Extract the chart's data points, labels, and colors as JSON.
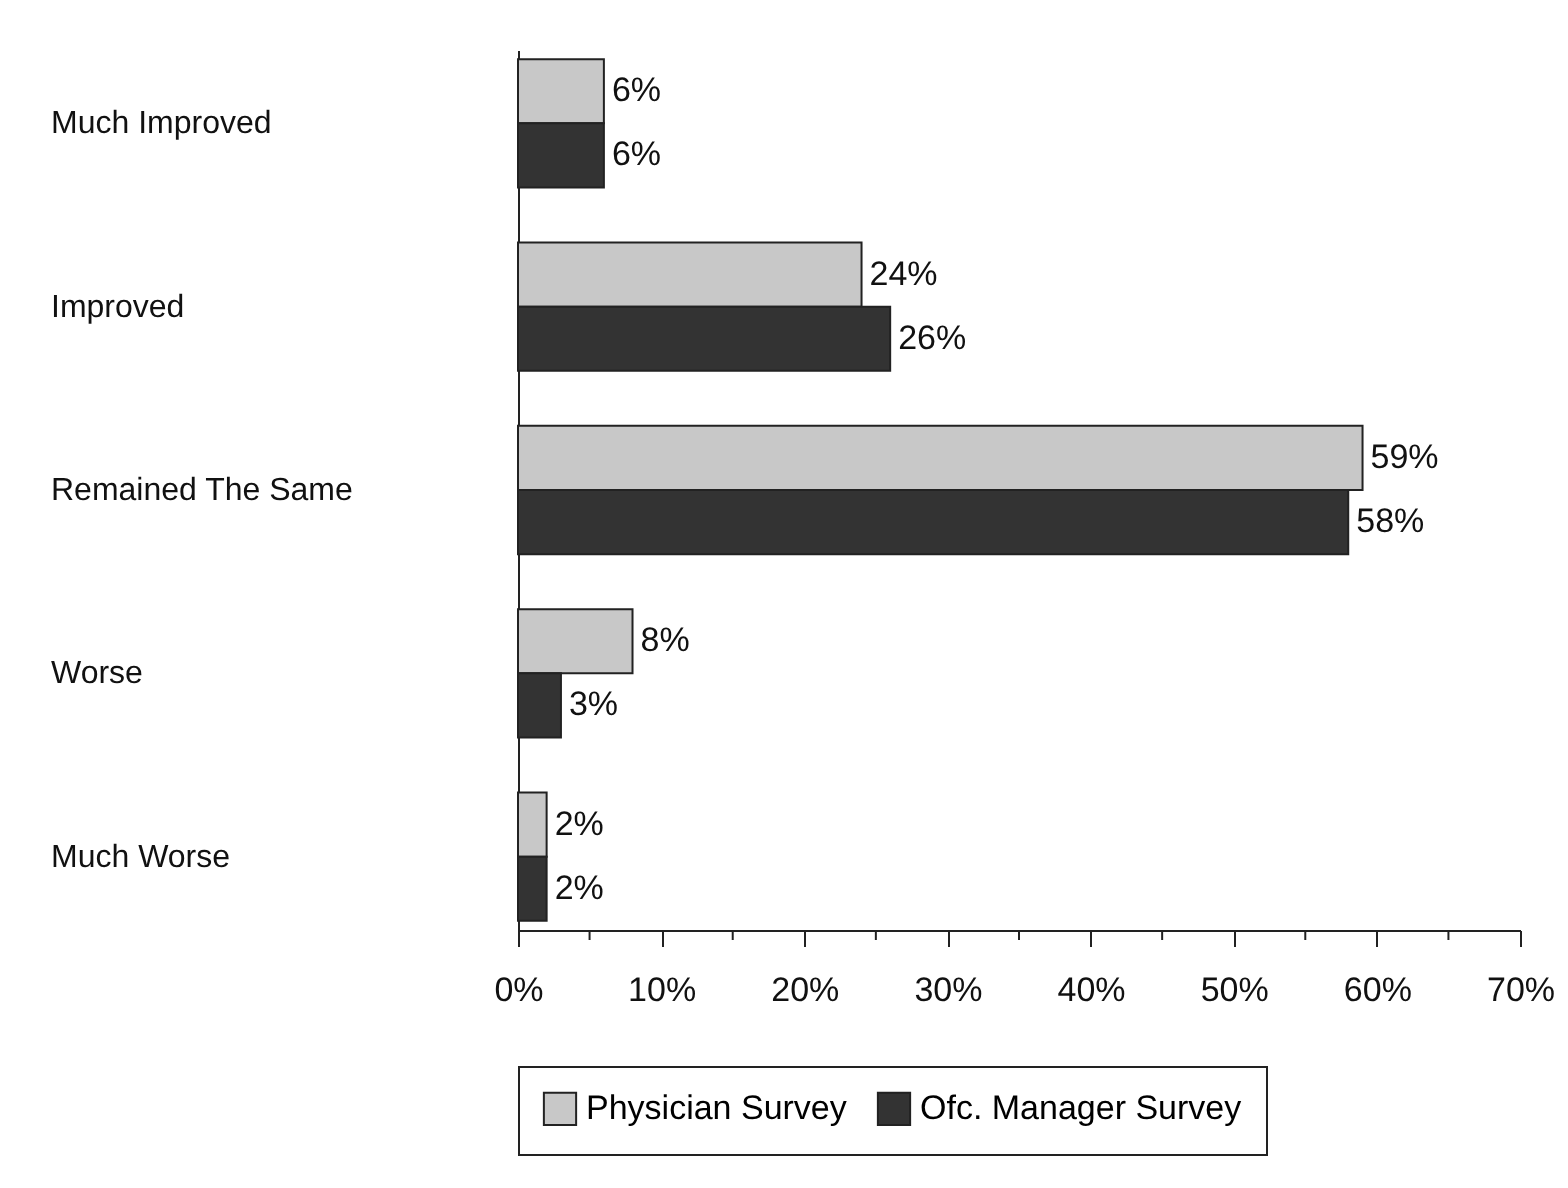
{
  "chart_data": {
    "type": "bar",
    "orientation": "horizontal",
    "categories": [
      "Much Improved",
      "Improved",
      "Remained The Same",
      "Worse",
      "Much Worse"
    ],
    "series": [
      {
        "name": "Physician Survey",
        "color": "#c8c8c8",
        "values": [
          6,
          24,
          59,
          8,
          2
        ],
        "value_labels": [
          "6%",
          "24%",
          "59%",
          "8%",
          "2%"
        ]
      },
      {
        "name": "Ofc. Manager Survey",
        "color": "#333333",
        "values": [
          6,
          26,
          58,
          3,
          2
        ],
        "value_labels": [
          "6%",
          "26%",
          "58%",
          "3%",
          "2%"
        ]
      }
    ],
    "xlim": [
      0,
      70
    ],
    "xticks": [
      {
        "value": 0,
        "label": "0%"
      },
      {
        "value": 5,
        "label": null
      },
      {
        "value": 10,
        "label": "10%"
      },
      {
        "value": 15,
        "label": null
      },
      {
        "value": 20,
        "label": "20%"
      },
      {
        "value": 25,
        "label": null
      },
      {
        "value": 30,
        "label": "30%"
      },
      {
        "value": 35,
        "label": null
      },
      {
        "value": 40,
        "label": "40%"
      },
      {
        "value": 45,
        "label": null
      },
      {
        "value": 50,
        "label": "50%"
      },
      {
        "value": 55,
        "label": null
      },
      {
        "value": 60,
        "label": "60%"
      },
      {
        "value": 65,
        "label": null
      },
      {
        "value": 70,
        "label": "70%"
      }
    ],
    "grid": false,
    "legend": "bottom"
  }
}
